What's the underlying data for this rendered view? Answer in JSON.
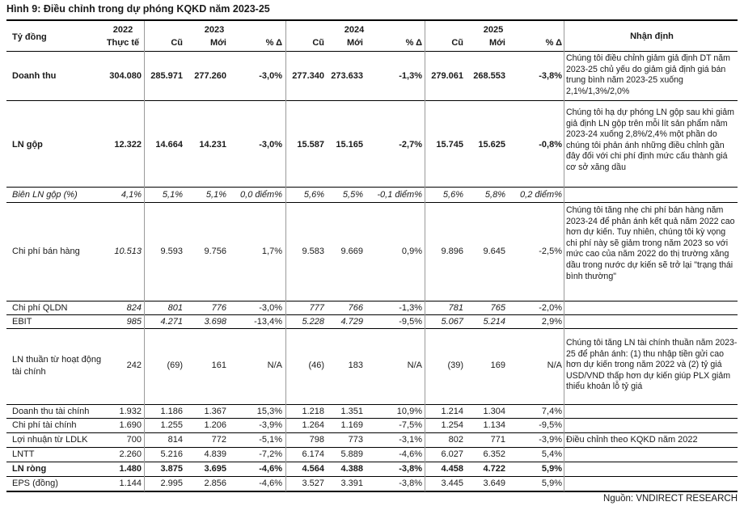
{
  "title": "Hình 9: Điều chỉnh trong dự phóng KQKD năm 2023-25",
  "header": {
    "unit_label": "Tỷ đồng",
    "years": [
      "2022",
      "2023",
      "2024",
      "2025"
    ],
    "actual_label": "Thực tế",
    "old_label": "Cũ",
    "new_label": "Mới",
    "pct_label": "% Δ",
    "comment_label": "Nhận định"
  },
  "rows": [
    {
      "label": "Doanh thu",
      "actual": "304.080",
      "v2023": [
        "285.971",
        "277.260",
        "-3,0%"
      ],
      "v2024": [
        "277.340",
        "273.633",
        "-1,3%"
      ],
      "v2025": [
        "279.061",
        "268.553",
        "-3,8%"
      ]
    },
    {
      "label": "LN gộp",
      "actual": "12.322",
      "v2023": [
        "14.664",
        "14.231",
        "-3,0%"
      ],
      "v2024": [
        "15.587",
        "15.165",
        "-2,7%"
      ],
      "v2025": [
        "15.745",
        "15.625",
        "-0,8%"
      ]
    },
    {
      "label": "Biên LN gộp (%)",
      "actual": "4,1%",
      "v2023": [
        "5,1%",
        "5,1%",
        "0,0 điểm%"
      ],
      "v2024": [
        "5,6%",
        "5,5%",
        "-0,1 điểm%"
      ],
      "v2025": [
        "5,6%",
        "5,8%",
        "0,2 điểm%"
      ]
    },
    {
      "label": "Chi phí bán hàng",
      "actual": "10.513",
      "v2023": [
        "9.593",
        "9.756",
        "1,7%"
      ],
      "v2024": [
        "9.583",
        "9.669",
        "0,9%"
      ],
      "v2025": [
        "9.896",
        "9.645",
        "-2,5%"
      ]
    },
    {
      "label": "Chi phí QLDN",
      "actual": "824",
      "v2023": [
        "801",
        "776",
        "-3,0%"
      ],
      "v2024": [
        "777",
        "766",
        "-1,3%"
      ],
      "v2025": [
        "781",
        "765",
        "-2,0%"
      ]
    },
    {
      "label": "EBIT",
      "actual": "985",
      "v2023": [
        "4.271",
        "3.698",
        "-13,4%"
      ],
      "v2024": [
        "5.228",
        "4.729",
        "-9,5%"
      ],
      "v2025": [
        "5.067",
        "5.214",
        "2,9%"
      ]
    },
    {
      "label": "LN thuần từ hoạt động tài chính",
      "actual": "242",
      "v2023": [
        "(69)",
        "161",
        "N/A"
      ],
      "v2024": [
        "(46)",
        "183",
        "N/A"
      ],
      "v2025": [
        "(39)",
        "169",
        "N/A"
      ]
    },
    {
      "label": "Doanh thu tài chính",
      "actual": "1.932",
      "v2023": [
        "1.186",
        "1.367",
        "15,3%"
      ],
      "v2024": [
        "1.218",
        "1.351",
        "10,9%"
      ],
      "v2025": [
        "1.214",
        "1.304",
        "7,4%"
      ]
    },
    {
      "label": "Chi phí tài chính",
      "actual": "1.690",
      "v2023": [
        "1.255",
        "1.206",
        "-3,9%"
      ],
      "v2024": [
        "1.264",
        "1.169",
        "-7,5%"
      ],
      "v2025": [
        "1.254",
        "1.134",
        "-9,5%"
      ]
    },
    {
      "label": "Lợi nhuận từ LDLK",
      "actual": "700",
      "v2023": [
        "814",
        "772",
        "-5,1%"
      ],
      "v2024": [
        "798",
        "773",
        "-3,1%"
      ],
      "v2025": [
        "802",
        "771",
        "-3,9%"
      ]
    },
    {
      "label": "LNTT",
      "actual": "2.260",
      "v2023": [
        "5.216",
        "4.839",
        "-7,2%"
      ],
      "v2024": [
        "6.174",
        "5.889",
        "-4,6%"
      ],
      "v2025": [
        "6.027",
        "6.352",
        "5,4%"
      ]
    },
    {
      "label": "LN ròng",
      "actual": "1.480",
      "v2023": [
        "3.875",
        "3.695",
        "-4,6%"
      ],
      "v2024": [
        "4.564",
        "4.388",
        "-3,8%"
      ],
      "v2025": [
        "4.458",
        "4.722",
        "5,9%"
      ]
    },
    {
      "label": "EPS (đồng)",
      "actual": "1.144",
      "v2023": [
        "2.995",
        "2.856",
        "-4,6%"
      ],
      "v2024": [
        "3.527",
        "3.391",
        "-3,8%"
      ],
      "v2025": [
        "3.445",
        "3.649",
        "5,9%"
      ]
    }
  ],
  "comments": {
    "revenue": "Chúng tôi điều chỉnh giảm giả định DT năm 2023-25 chủ yếu do giảm giả định giá bán trung bình năm 2023-25 xuống 2,1%/1,3%/2,0%",
    "gross_profit": "Chúng tôi hạ dự phóng LN gộp sau khi giảm giả định LN gộp trên mỗi lít sản phẩm năm 2023-24 xuống 2,8%/2,4% một phần do chúng tôi phản ánh những điều chỉnh gần đây đối với chi phí định mức cấu thành giá cơ sở xăng dầu",
    "selling_expense": "Chúng tôi tăng nhẹ chi phí bán hàng năm 2023-24 để phản ánh kết quả năm 2022 cao hơn dự kiến. Tuy nhiên, chúng tôi kỳ vọng chi phí này sẽ giảm trong năm 2023 so với mức cao của năm 2022 do thị trường xăng dầu trong nước dự kiến sẽ trở lại \"trạng thái bình thường\"",
    "financial": "Chúng tôi tăng LN tài chính thuần năm 2023-25 để phản ánh: (1) thu nhập tiền gửi cao hơn dự kiến trong năm 2022 và (2) tỷ giá USD/VND thấp hơn dự kiến giúp PLX giảm thiểu khoản lỗ tỷ giá",
    "associates": "Điều chỉnh theo KQKD năm 2022"
  },
  "source": "Nguồn: VNDIRECT RESEARCH"
}
